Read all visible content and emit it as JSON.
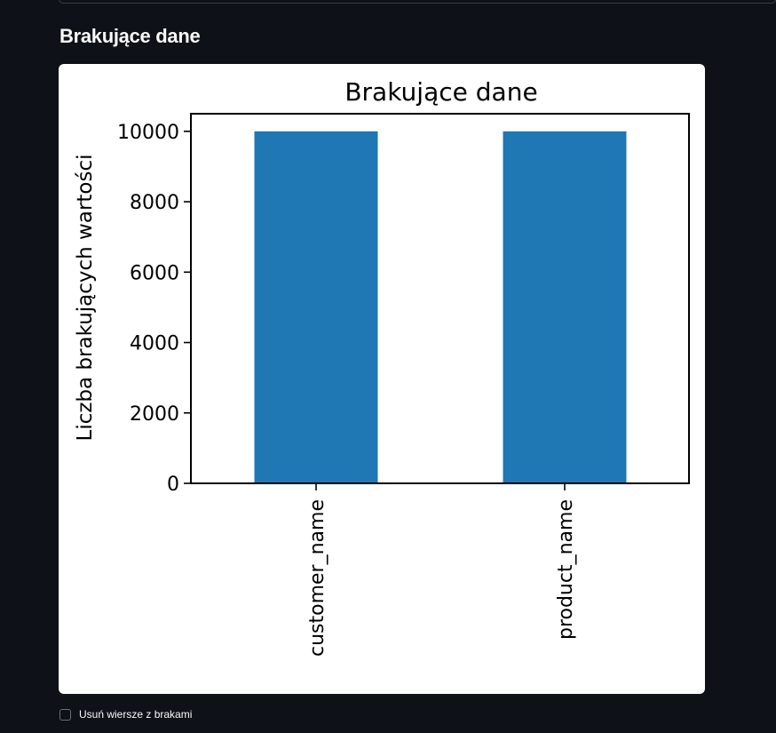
{
  "section": {
    "title": "Brakujące dane"
  },
  "chart_data": {
    "type": "bar",
    "title": "Brakujące dane",
    "xlabel": "",
    "ylabel": "Liczba brakujących wartości",
    "categories": [
      "customer_name",
      "product_name"
    ],
    "values": [
      10000,
      10000
    ],
    "ylim": [
      0,
      10500
    ],
    "yticks": [
      0,
      2000,
      4000,
      6000,
      8000,
      10000
    ],
    "ytick_labels": [
      "0",
      "2000",
      "4000",
      "6000",
      "8000",
      "10000"
    ],
    "bar_color": "#1f77b4",
    "grid": false,
    "legend": "none"
  },
  "controls": {
    "drop_missing_label": "Usuń wiersze z brakami",
    "drop_missing_checked": false
  }
}
